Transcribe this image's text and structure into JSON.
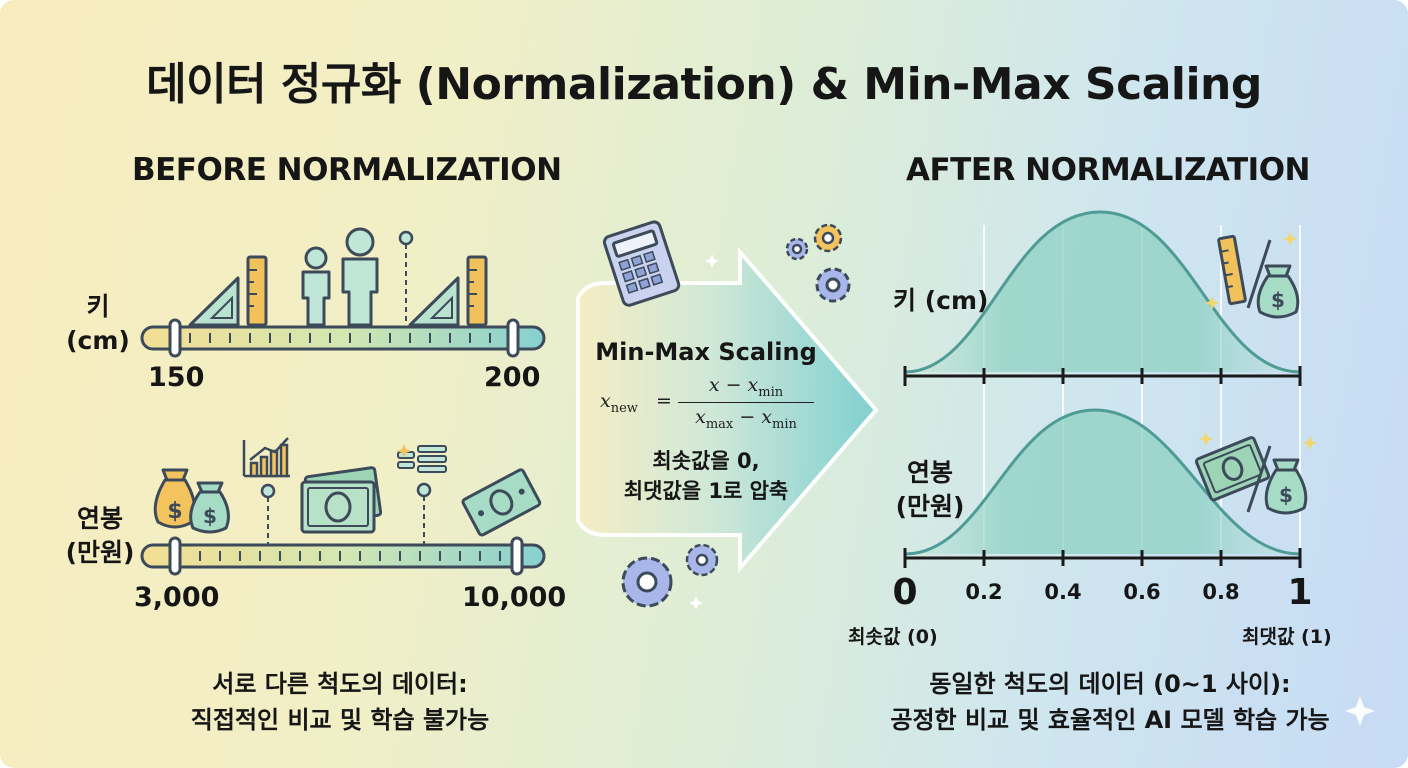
{
  "title": "데이터 정규화 (Normalization) & Min-Max Scaling",
  "before": {
    "heading": "BEFORE NORMALIZATION",
    "height": {
      "label_line1": "키",
      "label_line2": "(cm)",
      "min": "150",
      "max": "200"
    },
    "salary": {
      "label_line1": "연봉",
      "label_line2": "(만원)",
      "min": "3,000",
      "max": "10,000"
    },
    "caption_line1": "서로 다른 척도의 데이터:",
    "caption_line2": "직접적인 비교 및 학습 불가능"
  },
  "middle": {
    "title": "Min-Max Scaling",
    "formula": {
      "lhs_var": "x",
      "lhs_sub": "new",
      "numerator_var": "x − x",
      "numerator_sub": "min",
      "denominator_var1": "x",
      "denominator_sub1": "max",
      "denominator_var2": " − x",
      "denominator_sub2": "min"
    },
    "note_line1": "최솟값을 0,",
    "note_line2": "최댓값을 1로 압축"
  },
  "after": {
    "heading": "AFTER NORMALIZATION",
    "height_label": "키 (cm)",
    "salary_label_line1": "연봉",
    "salary_label_line2": "(만원)",
    "ticks": [
      "0",
      "0.2",
      "0.4",
      "0.6",
      "0.8",
      "1"
    ],
    "min_label": "최솟값 (0)",
    "max_label": "최댓값 (1)",
    "caption_line1": "동일한 척도의 데이터 (0~1 사이):",
    "caption_line2": "공정한 비교 및 효율적인 AI 모델 학습 가능"
  },
  "icons": [
    "triangle-ruler-icon",
    "ruler-icon",
    "person-icon",
    "money-bag-icon",
    "bar-chart-icon",
    "banknote-icon",
    "calculator-icon",
    "gear-icon",
    "sparkle-icon"
  ],
  "colors": {
    "teal": "#7ecdc6",
    "curve": "#4f9c95",
    "axis": "#1a1a1a",
    "gold": "#e7b54a",
    "arrow": "#8fd6d2"
  }
}
